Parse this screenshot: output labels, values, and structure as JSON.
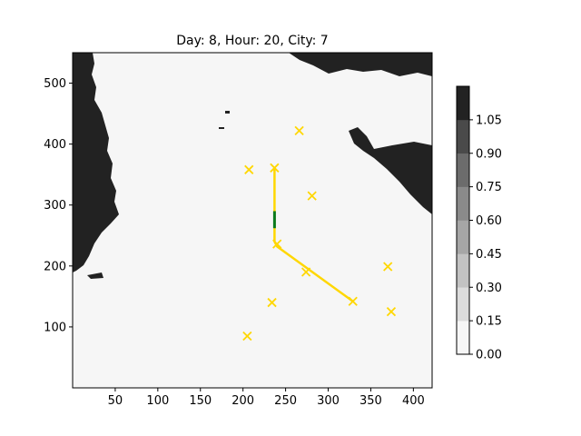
{
  "chart_data": {
    "type": "heatmap",
    "title": "Day: 8, Hour: 20, City: 7",
    "xlabel": "",
    "ylabel": "",
    "xlim": [
      0,
      422
    ],
    "ylim": [
      0,
      550
    ],
    "xticks": [
      "50",
      "100",
      "150",
      "200",
      "250",
      "300",
      "350",
      "400"
    ],
    "yticks": [
      "100",
      "200",
      "300",
      "400",
      "500"
    ],
    "colorbar": {
      "levels": [
        "0.00",
        "0.15",
        "0.30",
        "0.45",
        "0.60",
        "0.75",
        "0.90",
        "1.05"
      ],
      "colors": [
        "#f6f6f6",
        "#dcdcdc",
        "#c2c2c2",
        "#a6a6a6",
        "#8a8a8a",
        "#6c6c6c",
        "#4a4a4a",
        "#222222"
      ]
    },
    "cities": [
      {
        "x": 205,
        "y": 85
      },
      {
        "x": 234,
        "y": 140
      },
      {
        "x": 274,
        "y": 190
      },
      {
        "x": 329,
        "y": 142
      },
      {
        "x": 370,
        "y": 199
      },
      {
        "x": 374,
        "y": 125
      },
      {
        "x": 207,
        "y": 358
      },
      {
        "x": 237,
        "y": 361
      },
      {
        "x": 281,
        "y": 315
      },
      {
        "x": 266,
        "y": 422
      },
      {
        "x": 240,
        "y": 236
      }
    ],
    "route": [
      [
        237,
        361
      ],
      [
        237,
        290
      ],
      [
        237,
        240
      ],
      [
        240,
        232
      ],
      [
        329,
        142
      ]
    ],
    "current_segment": [
      [
        237,
        290
      ],
      [
        237,
        262
      ]
    ],
    "colors": {
      "route": "#ffd700",
      "current": "#0a7a1e",
      "city": "#ffd700",
      "land": "#222222",
      "sea": "#f6f6f6"
    }
  }
}
